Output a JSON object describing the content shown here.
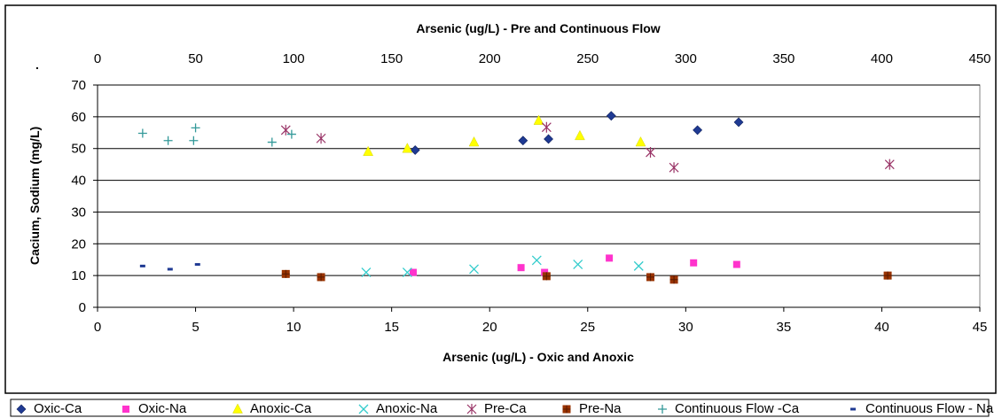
{
  "chart_data": {
    "type": "scatter",
    "top_axis": {
      "label": "Arsenic (ug/L) - Pre and Continuous Flow",
      "range": [
        0,
        450
      ],
      "ticks": [
        "0",
        "50",
        "100",
        "150",
        "200",
        "250",
        "300",
        "350",
        "400",
        "450"
      ]
    },
    "bottom_axis": {
      "label": "Arsenic (ug/L) - Oxic and Anoxic",
      "range": [
        0,
        45
      ],
      "ticks": [
        "0",
        "5",
        "10",
        "15",
        "20",
        "25",
        "30",
        "35",
        "40",
        "45"
      ]
    },
    "y_axis": {
      "label": "Cacium, Sodium (mg/L)",
      "range": [
        0,
        70
      ],
      "ticks": [
        "0",
        "10",
        "20",
        "30",
        "40",
        "50",
        "60",
        "70"
      ]
    },
    "grid": "horizontal",
    "legend_position": "bottom",
    "series": [
      {
        "name": "Oxic-Ca",
        "axis": "bottom",
        "marker": "diamond",
        "color": "#1f3a93",
        "points": [
          [
            16.2,
            49.5
          ],
          [
            21.7,
            52.5
          ],
          [
            23.0,
            53.0
          ],
          [
            26.2,
            60.3
          ],
          [
            30.6,
            55.8
          ],
          [
            32.7,
            58.3
          ]
        ]
      },
      {
        "name": "Oxic-Na",
        "axis": "bottom",
        "marker": "square",
        "color": "#ff33cc",
        "points": [
          [
            16.1,
            11.0
          ],
          [
            21.6,
            12.5
          ],
          [
            22.8,
            11.0
          ],
          [
            26.1,
            15.5
          ],
          [
            30.4,
            14.0
          ],
          [
            32.6,
            13.5
          ]
        ]
      },
      {
        "name": "Anoxic-Ca",
        "axis": "bottom",
        "marker": "triangle",
        "color": "#ffff00",
        "points": [
          [
            13.8,
            49.0
          ],
          [
            15.8,
            50.0
          ],
          [
            19.2,
            52.0
          ],
          [
            22.5,
            58.8
          ],
          [
            24.6,
            54.0
          ],
          [
            27.7,
            52.0
          ]
        ]
      },
      {
        "name": "Anoxic-Na",
        "axis": "bottom",
        "marker": "x",
        "color": "#33cccc",
        "points": [
          [
            13.7,
            11.0
          ],
          [
            15.8,
            11.0
          ],
          [
            19.2,
            12.0
          ],
          [
            22.4,
            14.8
          ],
          [
            24.5,
            13.5
          ],
          [
            27.6,
            13.0
          ]
        ]
      },
      {
        "name": "Pre-Ca",
        "axis": "top",
        "marker": "star",
        "color": "#993366",
        "points": [
          [
            96,
            55.8
          ],
          [
            114,
            53.2
          ],
          [
            229,
            56.7
          ],
          [
            282,
            48.8
          ],
          [
            294,
            44.0
          ],
          [
            404,
            45.0
          ]
        ]
      },
      {
        "name": "Pre-Na",
        "axis": "top",
        "marker": "square-cross",
        "color": "#993300",
        "points": [
          [
            96,
            10.5
          ],
          [
            114,
            9.5
          ],
          [
            229,
            9.8
          ],
          [
            282,
            9.5
          ],
          [
            294,
            8.7
          ],
          [
            403,
            10.0
          ]
        ]
      },
      {
        "name": "Continuous Flow -Ca",
        "axis": "top",
        "marker": "plus",
        "color": "#339999",
        "points": [
          [
            23,
            54.8
          ],
          [
            36,
            52.5
          ],
          [
            49,
            52.5
          ],
          [
            50,
            56.5
          ],
          [
            89,
            52.0
          ],
          [
            99,
            54.5
          ]
        ]
      },
      {
        "name": "Continuous Flow - Na",
        "axis": "top",
        "marker": "dash",
        "color": "#1f3a93",
        "points": [
          [
            23,
            13.0
          ],
          [
            37,
            12.0
          ],
          [
            51,
            13.5
          ]
        ]
      }
    ]
  },
  "stray_mark": "."
}
